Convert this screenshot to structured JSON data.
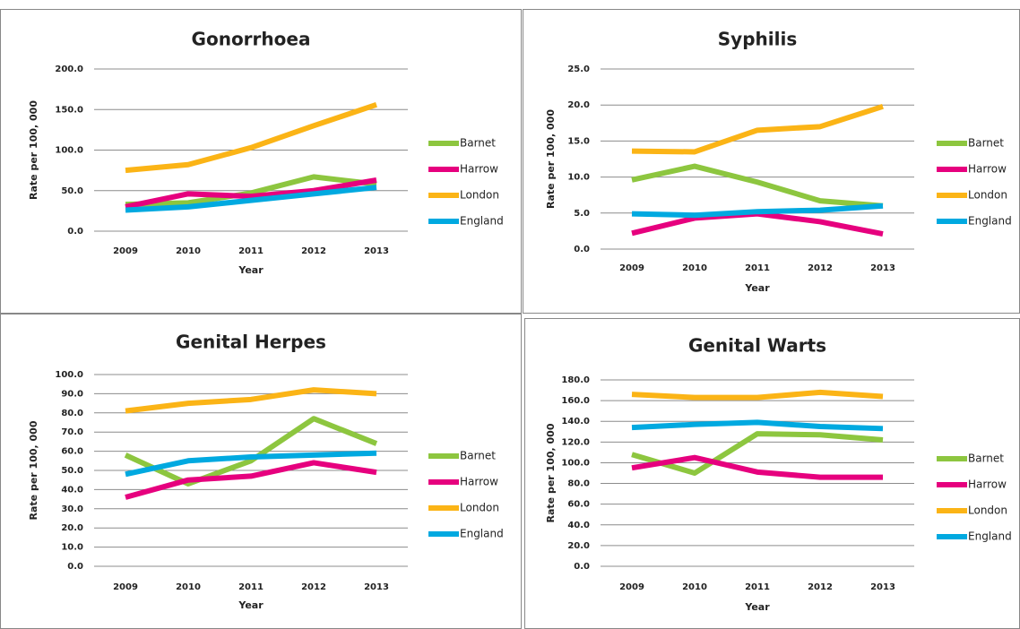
{
  "chart_data": [
    {
      "type": "line",
      "title": "Gonorrhoea",
      "xlabel": "Year",
      "ylabel": "Rate per 100, 000",
      "categories": [
        "2009",
        "2010",
        "2011",
        "2012",
        "2013"
      ],
      "ylim": [
        0,
        200
      ],
      "yticks": [
        {
          "value": 0,
          "label": "0.0"
        },
        {
          "value": 50,
          "label": "50.0"
        },
        {
          "value": 100,
          "label": "100.0"
        },
        {
          "value": 150,
          "label": "150.0"
        },
        {
          "value": 200,
          "label": "200.0"
        }
      ],
      "grid": true,
      "series": [
        {
          "name": "Barnet",
          "color": "#8dc63f",
          "values": [
            33,
            35,
            47,
            67,
            58
          ]
        },
        {
          "name": "Harrow",
          "color": "#e6007e",
          "values": [
            30,
            46,
            43,
            50,
            63
          ]
        },
        {
          "name": "London",
          "color": "#fbb416",
          "values": [
            75,
            82,
            103,
            130,
            156
          ]
        },
        {
          "name": "England",
          "color": "#00a9e0",
          "values": [
            26,
            30,
            38,
            46,
            54
          ]
        }
      ]
    },
    {
      "type": "line",
      "title": "Syphilis",
      "xlabel": "Year",
      "ylabel": "Rate per 100, 000",
      "categories": [
        "2009",
        "2010",
        "2011",
        "2012",
        "2013"
      ],
      "ylim": [
        0,
        25
      ],
      "yticks": [
        {
          "value": 0,
          "label": "0.0"
        },
        {
          "value": 5,
          "label": "5.0"
        },
        {
          "value": 10,
          "label": "10.0"
        },
        {
          "value": 15,
          "label": "15.0"
        },
        {
          "value": 20,
          "label": "20.0"
        },
        {
          "value": 25,
          "label": "25.0"
        }
      ],
      "grid": true,
      "series": [
        {
          "name": "Barnet",
          "color": "#8dc63f",
          "values": [
            9.6,
            11.5,
            9.3,
            6.7,
            6.0
          ]
        },
        {
          "name": "Harrow",
          "color": "#e6007e",
          "values": [
            2.2,
            4.3,
            4.9,
            3.8,
            2.1
          ]
        },
        {
          "name": "London",
          "color": "#fbb416",
          "values": [
            13.6,
            13.5,
            16.5,
            17.0,
            19.8
          ]
        },
        {
          "name": "England",
          "color": "#00a9e0",
          "values": [
            4.9,
            4.7,
            5.2,
            5.4,
            6.0
          ]
        }
      ]
    },
    {
      "type": "line",
      "title": "Genital Herpes",
      "xlabel": "Year",
      "ylabel": "Rate per 100, 000",
      "categories": [
        "2009",
        "2010",
        "2011",
        "2012",
        "2013"
      ],
      "ylim": [
        0,
        100
      ],
      "yticks": [
        {
          "value": 0,
          "label": "0.0"
        },
        {
          "value": 10,
          "label": "10.0"
        },
        {
          "value": 20,
          "label": "20.0"
        },
        {
          "value": 30,
          "label": "30.0"
        },
        {
          "value": 40,
          "label": "40.0"
        },
        {
          "value": 50,
          "label": "50.0"
        },
        {
          "value": 60,
          "label": "60.0"
        },
        {
          "value": 70,
          "label": "70.0"
        },
        {
          "value": 80,
          "label": "80.0"
        },
        {
          "value": 90,
          "label": "90.0"
        },
        {
          "value": 100,
          "label": "100.0"
        }
      ],
      "grid": true,
      "series": [
        {
          "name": "Barnet",
          "color": "#8dc63f",
          "values": [
            58,
            43,
            55,
            77,
            64
          ]
        },
        {
          "name": "Harrow",
          "color": "#e6007e",
          "values": [
            36,
            45,
            47,
            54,
            49
          ]
        },
        {
          "name": "London",
          "color": "#fbb416",
          "values": [
            81,
            85,
            87,
            92,
            90
          ]
        },
        {
          "name": "England",
          "color": "#00a9e0",
          "values": [
            48,
            55,
            57,
            58,
            59
          ]
        }
      ]
    },
    {
      "type": "line",
      "title": "Genital Warts",
      "xlabel": "Year",
      "ylabel": "Rate per 100, 000",
      "categories": [
        "2009",
        "2010",
        "2011",
        "2012",
        "2013"
      ],
      "ylim": [
        0,
        180
      ],
      "yticks": [
        {
          "value": 0,
          "label": "0.0"
        },
        {
          "value": 20,
          "label": "20.0"
        },
        {
          "value": 40,
          "label": "40.0"
        },
        {
          "value": 60,
          "label": "60.0"
        },
        {
          "value": 80,
          "label": "80.0"
        },
        {
          "value": 100,
          "label": "100.0"
        },
        {
          "value": 120,
          "label": "120.0"
        },
        {
          "value": 140,
          "label": "140.0"
        },
        {
          "value": 160,
          "label": "160.0"
        },
        {
          "value": 180,
          "label": "180.0"
        }
      ],
      "grid": true,
      "series": [
        {
          "name": "Barnet",
          "color": "#8dc63f",
          "values": [
            108,
            90,
            128,
            127,
            122
          ]
        },
        {
          "name": "Harrow",
          "color": "#e6007e",
          "values": [
            95,
            105,
            91,
            86,
            86
          ]
        },
        {
          "name": "London",
          "color": "#fbb416",
          "values": [
            166,
            163,
            163,
            168,
            164
          ]
        },
        {
          "name": "England",
          "color": "#00a9e0",
          "values": [
            134,
            137,
            139,
            135,
            133
          ]
        }
      ]
    }
  ]
}
